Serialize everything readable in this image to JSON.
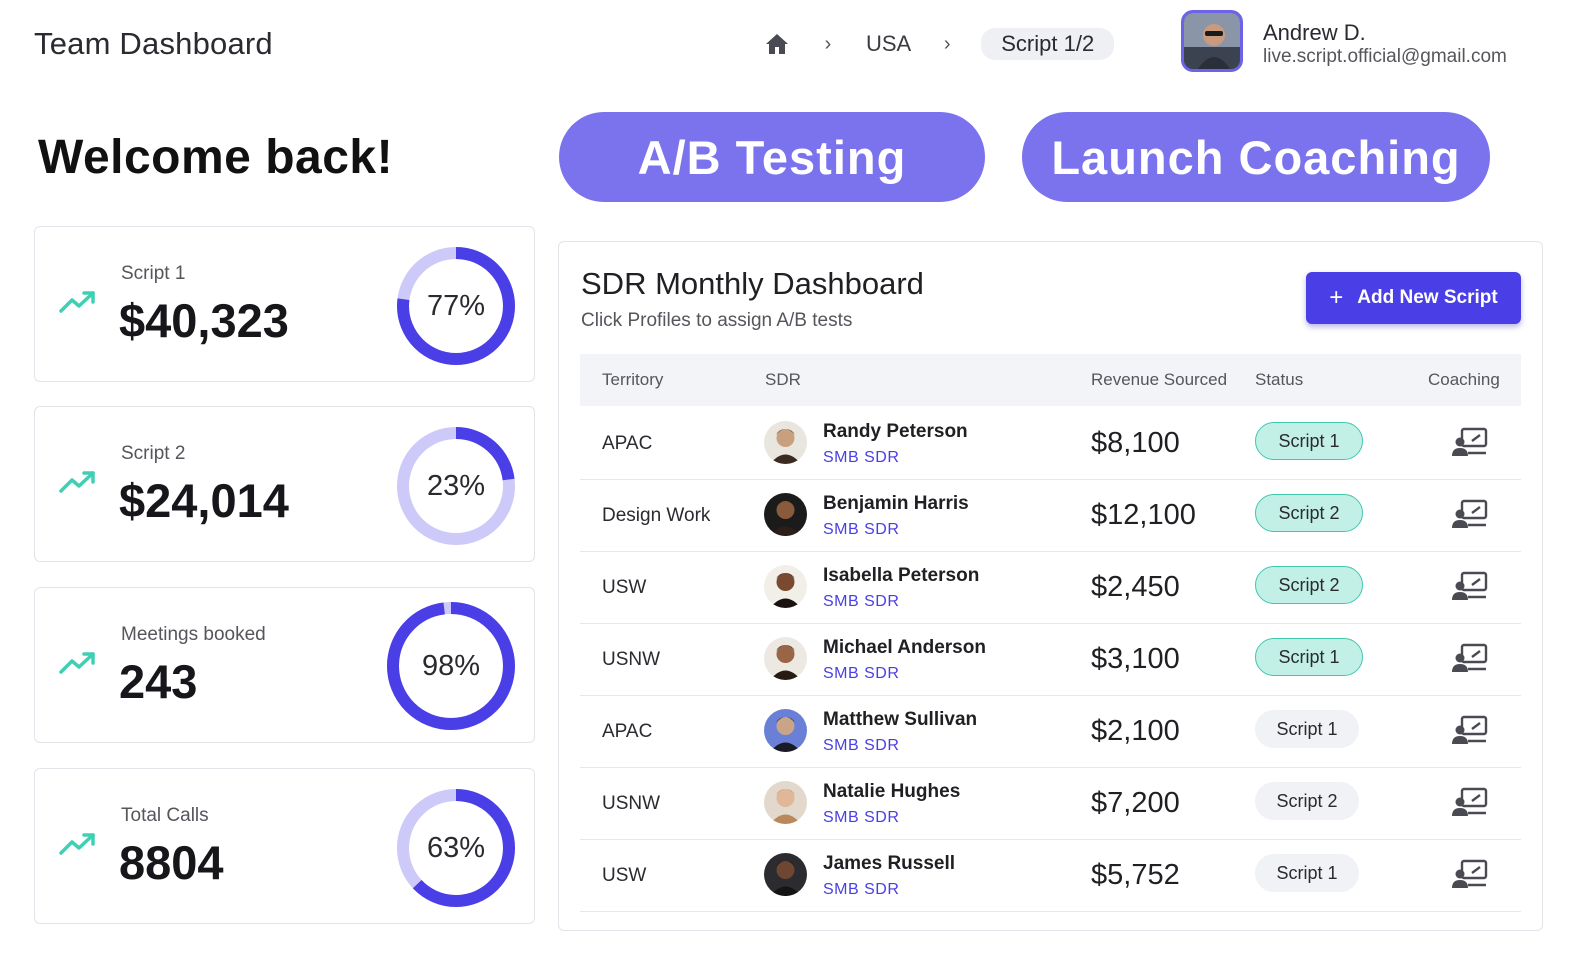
{
  "header": {
    "app_title": "Team Dashboard",
    "breadcrumb": {
      "home_icon": "home-icon",
      "separator": "›",
      "items": [
        "USA",
        "Script 1/2"
      ]
    },
    "user": {
      "name": "Andrew D.",
      "email": "live.script.official@gmail.com"
    }
  },
  "welcome": "Welcome back!",
  "cta": {
    "ab_testing": "A/B Testing",
    "launch_coaching": "Launch Coaching"
  },
  "colors": {
    "accent": "#4a3ee6",
    "cta": "#7b72ee",
    "ring_track": "#cdc9f8",
    "trend": "#3fd0b4",
    "teal_pill": "#c3f0e6"
  },
  "stats": [
    {
      "label": "Script 1",
      "value": "$40,323",
      "percent_label": "77%",
      "percent": 77
    },
    {
      "label": "Script 2",
      "value": "$24,014",
      "percent_label": "23%",
      "percent": 23
    },
    {
      "label": "Meetings booked",
      "value": "243",
      "percent_label": "98%",
      "percent": 98
    },
    {
      "label": "Total Calls",
      "value": "8804",
      "percent_label": "63%",
      "percent": 63
    }
  ],
  "dashboard": {
    "title": "SDR Monthly Dashboard",
    "subtitle": "Click Profiles to assign A/B tests",
    "add_button": "Add New Script",
    "columns": [
      "Territory",
      "SDR",
      "Revenue Sourced",
      "Status",
      "Coaching"
    ],
    "rows": [
      {
        "territory": "APAC",
        "name": "Randy Peterson",
        "role": "SMB SDR",
        "revenue": "$8,100",
        "status": "Script 1",
        "status_style": "teal"
      },
      {
        "territory": "Design Work",
        "name": "Benjamin Harris",
        "role": "SMB SDR",
        "revenue": "$12,100",
        "status": "Script 2",
        "status_style": "teal"
      },
      {
        "territory": "USW",
        "name": "Isabella Peterson",
        "role": "SMB SDR",
        "revenue": "$2,450",
        "status": "Script 2",
        "status_style": "teal"
      },
      {
        "territory": "USNW",
        "name": "Michael Anderson",
        "role": "SMB SDR",
        "revenue": "$3,100",
        "status": "Script 1",
        "status_style": "teal"
      },
      {
        "territory": "APAC",
        "name": "Matthew Sullivan",
        "role": "SMB SDR",
        "revenue": "$2,100",
        "status": "Script 1",
        "status_style": "grey"
      },
      {
        "territory": "USNW",
        "name": "Natalie Hughes",
        "role": "SMB SDR",
        "revenue": "$7,200",
        "status": "Script 2",
        "status_style": "grey"
      },
      {
        "territory": "USW",
        "name": "James Russell",
        "role": "SMB SDR",
        "revenue": "$5,752",
        "status": "Script 1",
        "status_style": "grey"
      }
    ]
  }
}
